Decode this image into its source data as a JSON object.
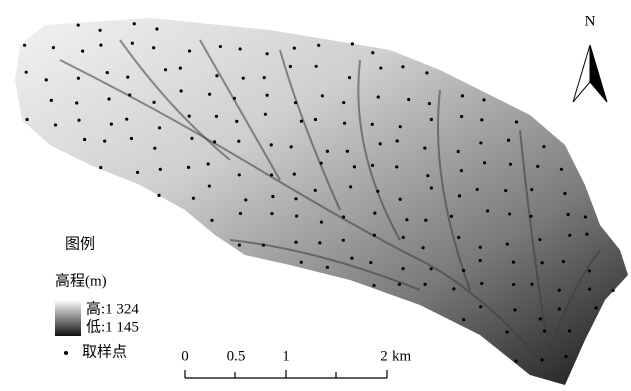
{
  "north": "N",
  "legend": {
    "title": "图例",
    "elevation_label": "高程(m)",
    "high": "高:1 324",
    "low": "低:1 145",
    "points": "取样点"
  },
  "scale_bar": {
    "ticks": [
      "0",
      "0.5",
      "1",
      "2"
    ],
    "unit": "km"
  }
}
